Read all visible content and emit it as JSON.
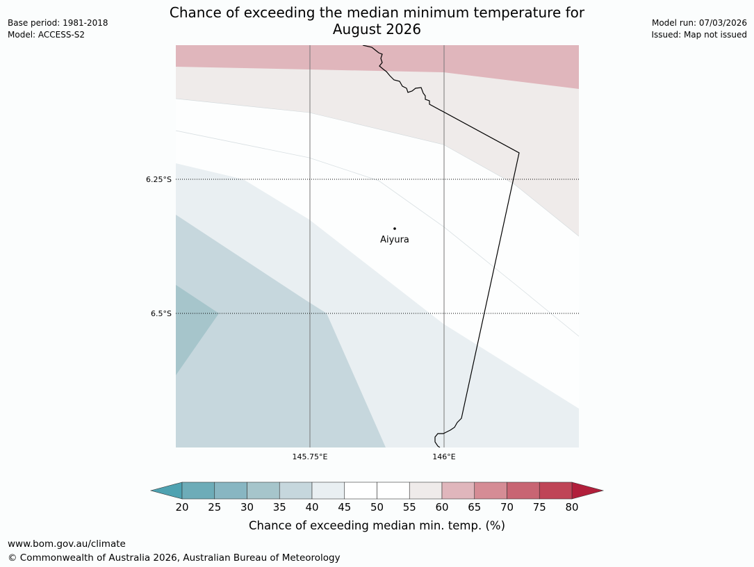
{
  "header": {
    "base_period": "Base period: 1981-2018",
    "model": "Model: ACCESS-S2",
    "title_line1": "Chance of exceeding the median minimum temperature for",
    "title_line2": "August 2026",
    "model_run": "Model run: 07/03/2026",
    "issued": "Issued: Map not issued"
  },
  "map": {
    "lat_labels": [
      "6.25°S",
      "6.5°S"
    ],
    "lon_labels": [
      "145.75°E",
      "146°E"
    ],
    "place": {
      "name": "Aiyura",
      "marker_icon": "location-dot-icon"
    }
  },
  "colorbar": {
    "ticks": [
      "20",
      "25",
      "30",
      "35",
      "40",
      "45",
      "50",
      "55",
      "60",
      "65",
      "70",
      "75",
      "80"
    ],
    "colors": [
      "#6dacb8",
      "#88b6c2",
      "#a6c5cb",
      "#c6d7dd",
      "#e9eff2",
      "#ffffff",
      "#ffffff",
      "#efebea",
      "#e0b6bc",
      "#d58c95",
      "#c86573",
      "#bf4557"
    ],
    "low_extend_color": "#4ea2b1",
    "high_extend_color": "#b11f3b",
    "label": "Chance of exceeding median min. temp. (%)"
  },
  "footer": {
    "url": "www.bom.gov.au/climate",
    "copyright": "© Commonwealth of Australia 2026, Australian Bureau of Meteorology"
  }
}
